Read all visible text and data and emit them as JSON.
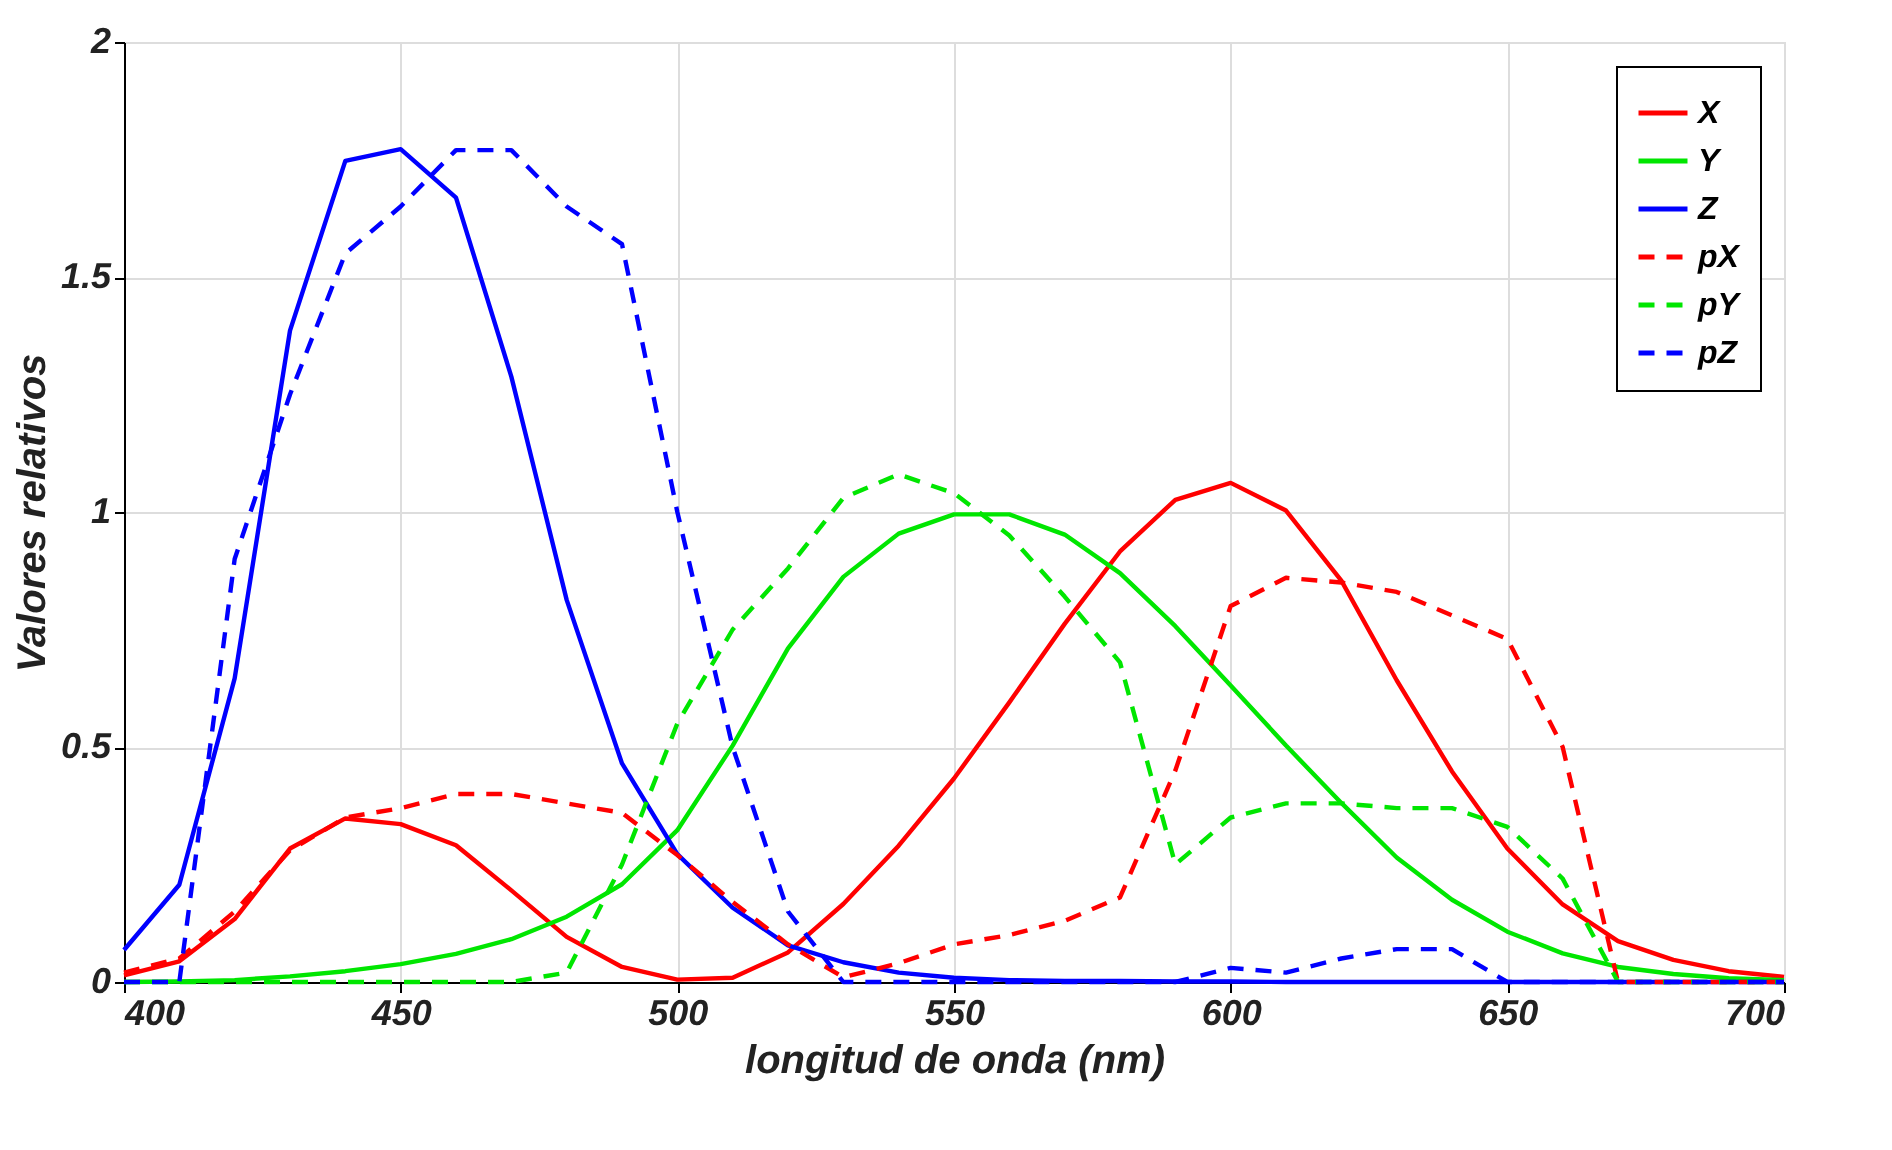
{
  "chart_data": {
    "type": "line",
    "xlabel": "longitud de onda (nm)",
    "ylabel": "Valores relativos",
    "x": [
      400,
      410,
      420,
      430,
      440,
      450,
      460,
      470,
      480,
      490,
      500,
      510,
      520,
      530,
      540,
      550,
      560,
      570,
      580,
      590,
      600,
      610,
      620,
      630,
      640,
      650,
      660,
      670,
      680,
      690,
      700
    ],
    "xlim": [
      400,
      700
    ],
    "xticks": [
      400,
      450,
      500,
      550,
      600,
      650,
      700
    ],
    "ylim": [
      0,
      2
    ],
    "yticks": [
      0,
      0.5,
      1,
      1.5,
      2
    ],
    "grid": true,
    "legend": "top right",
    "marker": "none",
    "series": [
      {
        "name": "X",
        "color": "#ff0000",
        "line_style": "solid",
        "values": [
          0.014,
          0.044,
          0.134,
          0.284,
          0.348,
          0.336,
          0.291,
          0.195,
          0.096,
          0.032,
          0.005,
          0.009,
          0.063,
          0.166,
          0.29,
          0.433,
          0.595,
          0.762,
          0.916,
          1.026,
          1.062,
          1.003,
          0.854,
          0.642,
          0.448,
          0.284,
          0.165,
          0.087,
          0.047,
          0.023,
          0.011
        ]
      },
      {
        "name": "Y",
        "color": "#00e600",
        "line_style": "solid",
        "values": [
          0,
          0.001,
          0.004,
          0.012,
          0.023,
          0.038,
          0.06,
          0.091,
          0.139,
          0.208,
          0.323,
          0.503,
          0.71,
          0.862,
          0.954,
          0.995,
          0.995,
          0.952,
          0.87,
          0.757,
          0.631,
          0.503,
          0.381,
          0.265,
          0.175,
          0.107,
          0.061,
          0.032,
          0.017,
          0.008,
          0.004
        ]
      },
      {
        "name": "Z",
        "color": "#0000ff",
        "line_style": "solid",
        "values": [
          0.068,
          0.207,
          0.646,
          1.386,
          1.747,
          1.772,
          1.669,
          1.288,
          0.813,
          0.465,
          0.272,
          0.158,
          0.078,
          0.042,
          0.02,
          0.009,
          0.004,
          0.002,
          0.002,
          0.001,
          0.001,
          0,
          0,
          0,
          0,
          0,
          0,
          0,
          0,
          0,
          0
        ]
      },
      {
        "name": "pX",
        "color": "#ff0000",
        "line_style": "dashed",
        "values": [
          0.02,
          0.05,
          0.15,
          0.28,
          0.35,
          0.37,
          0.4,
          0.4,
          0.38,
          0.36,
          0.27,
          0.17,
          0.08,
          0.01,
          0.04,
          0.08,
          0.1,
          0.13,
          0.18,
          0.45,
          0.8,
          0.86,
          0.85,
          0.83,
          0.78,
          0.73,
          0.5,
          0,
          0,
          0,
          0
        ]
      },
      {
        "name": "pY",
        "color": "#00e600",
        "line_style": "dashed",
        "values": [
          0,
          0,
          0,
          0,
          0,
          0,
          0,
          0,
          0.02,
          0.25,
          0.55,
          0.75,
          0.88,
          1.03,
          1.08,
          1.04,
          0.95,
          0.82,
          0.68,
          0.25,
          0.35,
          0.38,
          0.38,
          0.37,
          0.37,
          0.33,
          0.22,
          0,
          0,
          0,
          0
        ]
      },
      {
        "name": "pZ",
        "color": "#0000ff",
        "line_style": "dashed",
        "values": [
          0,
          0,
          0.9,
          1.25,
          1.55,
          1.65,
          1.77,
          1.77,
          1.65,
          1.57,
          1.0,
          0.5,
          0.15,
          0,
          0,
          0,
          0,
          0,
          0,
          0,
          0.03,
          0.02,
          0.05,
          0.07,
          0.07,
          0,
          0,
          0,
          0,
          0,
          0
        ]
      }
    ]
  }
}
